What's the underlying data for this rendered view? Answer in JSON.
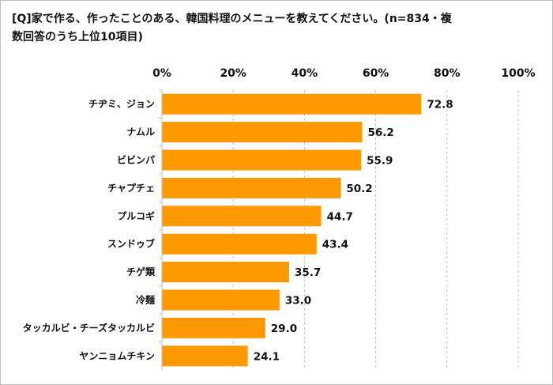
{
  "chart_data": {
    "type": "bar",
    "orientation": "horizontal",
    "title": "[Q]家で作る、作ったことのある、韓国料理のメニューを教えてください。(n=834・複数回答のうち上位10項目)",
    "categories": [
      "チヂミ、ジョン",
      "ナムル",
      "ビビンパ",
      "チャプチェ",
      "プルコギ",
      "スンドゥブ",
      "チゲ類",
      "冷麺",
      "タッカルビ・チーズタッカルビ",
      "ヤンニョムチキン"
    ],
    "values": [
      72.8,
      56.2,
      55.9,
      50.2,
      44.7,
      43.4,
      35.7,
      33.0,
      29.0,
      24.1
    ],
    "value_labels": [
      "72.8",
      "56.2",
      "55.9",
      "50.2",
      "44.7",
      "43.4",
      "35.7",
      "33.0",
      "29.0",
      "24.1"
    ],
    "xlim": [
      0,
      100
    ],
    "x_ticks": [
      "0%",
      "20%",
      "40%",
      "60%",
      "80%",
      "100%"
    ],
    "x_axis_position": "top",
    "grid": true,
    "bar_color": "#FF9900"
  }
}
